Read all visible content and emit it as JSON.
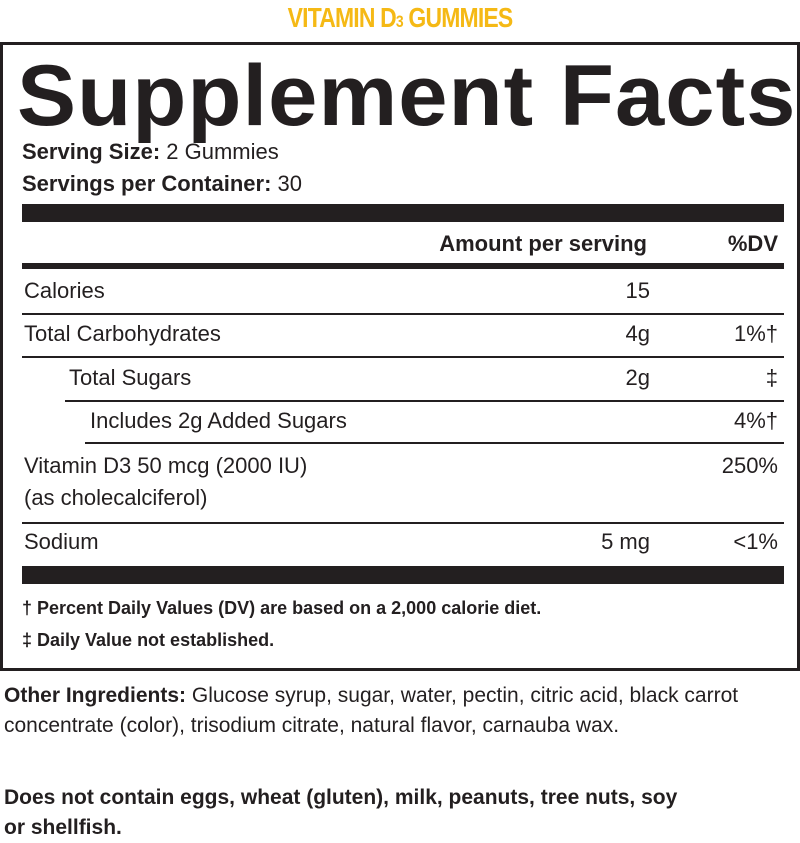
{
  "brand": {
    "title_main": "VITAMIN D",
    "title_sub": "3",
    "title_end": " GUMMIES",
    "color": "#f5b915"
  },
  "panel": {
    "title": "Supplement Facts",
    "serving_size_label": "Serving Size:",
    "serving_size_value": " 2 Gummies",
    "servings_label": "Servings per Container:",
    "servings_value": " 30",
    "header": {
      "amount": "Amount per serving",
      "dv": "%DV"
    },
    "rows": [
      {
        "name": "Calories",
        "amount": "15",
        "dv": ""
      },
      {
        "name": "Total Carbohydrates",
        "amount": "4g",
        "dv": "1%†"
      },
      {
        "name": "Total Sugars",
        "amount": "2g",
        "dv": "‡"
      },
      {
        "name": "Includes 2g Added Sugars",
        "amount": "",
        "dv": "4%†"
      },
      {
        "name": "Vitamin D3 50 mcg (2000 IU)",
        "name2": "(as cholecalciferol)",
        "amount": "",
        "dv": "250%"
      },
      {
        "name": "Sodium",
        "amount": "5 mg",
        "dv": "<1%"
      }
    ],
    "footnotes": [
      "† Percent Daily Values (DV) are based on a 2,000 calorie diet.",
      "‡ Daily Value not established."
    ]
  },
  "other_ingredients": {
    "label": "Other Ingredients:",
    "text": " Glucose syrup, sugar, water, pectin, citric acid, black carrot concentrate (color), trisodium citrate, natural flavor, carnauba wax."
  },
  "allergen": "Does not contain eggs, wheat (gluten), milk, peanuts, tree nuts, soy or shellfish."
}
